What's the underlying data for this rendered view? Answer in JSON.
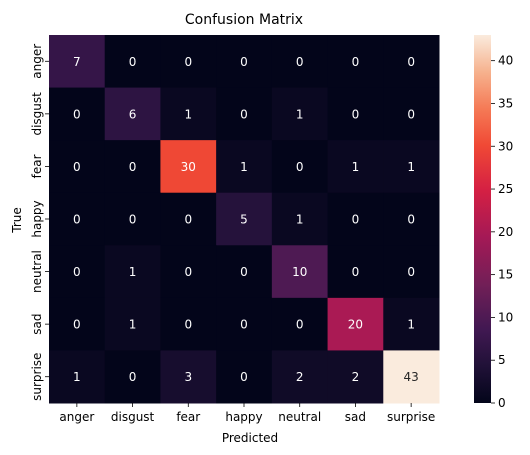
{
  "chart_data": {
    "type": "heatmap",
    "title": "Confusion Matrix",
    "xlabel": "Predicted",
    "ylabel": "True",
    "x_categories": [
      "anger",
      "disgust",
      "fear",
      "happy",
      "neutral",
      "sad",
      "surprise"
    ],
    "y_categories": [
      "anger",
      "disgust",
      "fear",
      "happy",
      "neutral",
      "sad",
      "surprise"
    ],
    "values": [
      [
        7,
        0,
        0,
        0,
        0,
        0,
        0
      ],
      [
        0,
        6,
        1,
        0,
        1,
        0,
        0
      ],
      [
        0,
        0,
        30,
        1,
        0,
        1,
        1
      ],
      [
        0,
        0,
        0,
        5,
        1,
        0,
        0
      ],
      [
        0,
        1,
        0,
        0,
        10,
        0,
        0
      ],
      [
        0,
        1,
        0,
        0,
        0,
        20,
        1
      ],
      [
        1,
        0,
        3,
        0,
        2,
        2,
        43
      ]
    ],
    "colorbar": {
      "range": [
        0,
        43
      ],
      "ticks": [
        "0",
        "5",
        "10",
        "15",
        "20",
        "25",
        "30",
        "35",
        "40"
      ]
    },
    "colormap": "rocket",
    "grid": false,
    "colorbar_placement": "right"
  }
}
